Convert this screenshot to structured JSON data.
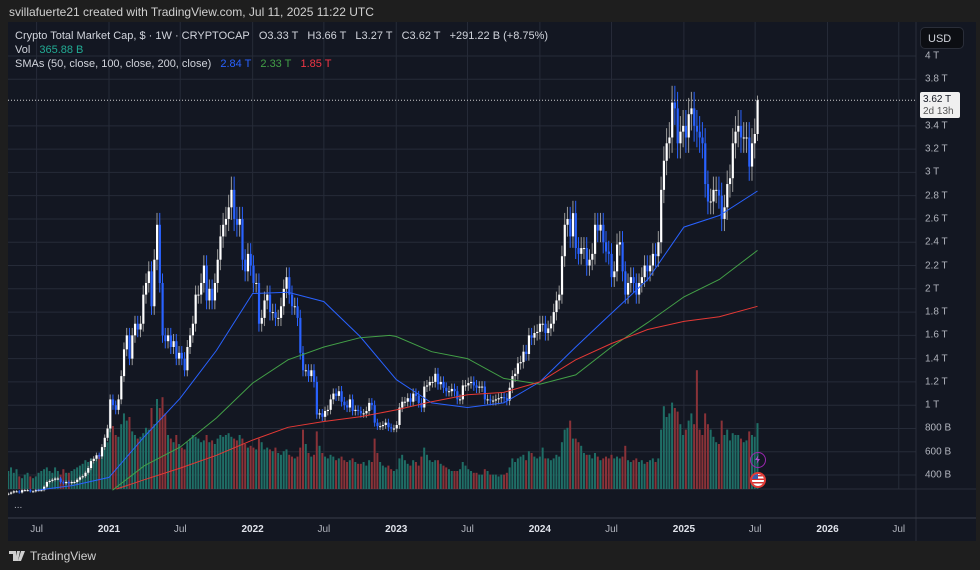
{
  "header": {
    "attribution": "svillafuerte21 created with TradingView.com, Jul 11, 2025 11:22 UTC"
  },
  "legend": {
    "symbol": "Crypto Total Market Cap, $ · 1W · CRYPTOCAP",
    "open": "O3.33 T",
    "high": "H3.66 T",
    "low": "L3.27 T",
    "close": "C3.62 T",
    "change": "+291.22 B (+8.75%)",
    "vol_label": "Vol",
    "vol_value": "365.88 B",
    "sma_label": "SMAs (50, close, 100, close, 200, close)",
    "sma50": "2.84 T",
    "sma100": "2.33 T",
    "sma200": "1.85 T"
  },
  "price_scale": {
    "currency": "USD",
    "ticks": [
      {
        "label": "4 T",
        "value": 4
      },
      {
        "label": "3.8 T",
        "value": 3.8
      },
      {
        "label": "3.4 T",
        "value": 3.4
      },
      {
        "label": "3.2 T",
        "value": 3.2
      },
      {
        "label": "3 T",
        "value": 3
      },
      {
        "label": "2.8 T",
        "value": 2.8
      },
      {
        "label": "2.6 T",
        "value": 2.6
      },
      {
        "label": "2.4 T",
        "value": 2.4
      },
      {
        "label": "2.2 T",
        "value": 2.2
      },
      {
        "label": "2 T",
        "value": 2
      },
      {
        "label": "1.8 T",
        "value": 1.8
      },
      {
        "label": "1.6 T",
        "value": 1.6
      },
      {
        "label": "1.4 T",
        "value": 1.4
      },
      {
        "label": "1.2 T",
        "value": 1.2
      },
      {
        "label": "1 T",
        "value": 1
      },
      {
        "label": "800 B",
        "value": 0.8
      },
      {
        "label": "600 B",
        "value": 0.6
      },
      {
        "label": "400 B",
        "value": 0.4
      }
    ],
    "last_price": "3.62 T",
    "countdown": "2d 13h"
  },
  "time_scale": {
    "ticks": [
      {
        "label": "Jul",
        "date": "2020-07-01",
        "year": false
      },
      {
        "label": "2021",
        "date": "2021-01-01",
        "year": true
      },
      {
        "label": "Jul",
        "date": "2021-07-01",
        "year": false
      },
      {
        "label": "2022",
        "date": "2022-01-01",
        "year": true
      },
      {
        "label": "Jul",
        "date": "2022-07-01",
        "year": false
      },
      {
        "label": "2023",
        "date": "2023-01-01",
        "year": true
      },
      {
        "label": "Jul",
        "date": "2023-07-01",
        "year": false
      },
      {
        "label": "2024",
        "date": "2024-01-01",
        "year": true
      },
      {
        "label": "Jul",
        "date": "2024-07-01",
        "year": false
      },
      {
        "label": "2025",
        "date": "2025-01-01",
        "year": true
      },
      {
        "label": "Jul",
        "date": "2025-07-01",
        "year": false
      },
      {
        "label": "2026",
        "date": "2026-01-01",
        "year": true
      },
      {
        "label": "Jul",
        "date": "2026-07-01",
        "year": false
      }
    ]
  },
  "pane_menu": "...",
  "footer": {
    "brand": "TradingView"
  },
  "colors": {
    "up": "#ffffff",
    "down": "#2962ff",
    "vol_up": "#1f6e66",
    "vol_down": "#8a3238",
    "sma50": "#2962ff",
    "sma100": "#43a047",
    "sma200": "#e53935",
    "background": "#131722",
    "grid": "#262b38"
  },
  "icons": [
    "lightning-event-icon",
    "us-flag-event-icon"
  ],
  "chart_data": {
    "type": "candlestick",
    "interval": "1W",
    "unit_price": "T USD",
    "unit_volume": "B USD",
    "first_week": "2020-04-20",
    "last_candle": {
      "open": 3.33,
      "high": 3.66,
      "low": 3.27,
      "close": 3.62
    },
    "closes": [
      0.24,
      0.25,
      0.26,
      0.26,
      0.25,
      0.27,
      0.27,
      0.27,
      0.26,
      0.26,
      0.27,
      0.27,
      0.27,
      0.3,
      0.34,
      0.35,
      0.36,
      0.37,
      0.37,
      0.34,
      0.33,
      0.34,
      0.33,
      0.34,
      0.34,
      0.36,
      0.38,
      0.39,
      0.42,
      0.46,
      0.52,
      0.54,
      0.57,
      0.56,
      0.64,
      0.72,
      0.8,
      1.05,
      1.0,
      0.96,
      1.05,
      1.25,
      1.48,
      1.6,
      1.4,
      1.6,
      1.7,
      1.65,
      1.7,
      1.95,
      2.05,
      2.15,
      1.85,
      2.25,
      2.55,
      2.05,
      1.6,
      1.55,
      1.6,
      1.5,
      1.55,
      1.4,
      1.45,
      1.4,
      1.3,
      1.5,
      1.6,
      1.7,
      1.95,
      1.95,
      2.05,
      2.2,
      1.9,
      2.0,
      1.9,
      2.05,
      2.25,
      2.45,
      2.55,
      2.6,
      2.7,
      2.85,
      2.6,
      2.55,
      2.6,
      2.25,
      2.15,
      2.3,
      2.2,
      2.05,
      2.05,
      1.7,
      1.75,
      1.9,
      1.95,
      1.8,
      1.8,
      1.75,
      1.75,
      1.85,
      2.0,
      2.1,
      1.95,
      1.85,
      1.85,
      1.75,
      1.45,
      1.3,
      1.3,
      1.25,
      1.3,
      1.2,
      0.92,
      0.93,
      0.9,
      0.95,
      0.96,
      1.05,
      1.1,
      1.08,
      1.12,
      1.03,
      1.0,
      0.98,
      1.05,
      0.95,
      0.96,
      0.95,
      0.93,
      0.93,
      0.95,
      1.02,
      1.0,
      0.85,
      0.82,
      0.82,
      0.83,
      0.85,
      0.81,
      0.8,
      0.8,
      0.83,
      0.98,
      1.03,
      1.03,
      1.06,
      1.03,
      1.1,
      1.08,
      1.02,
      0.98,
      1.16,
      1.17,
      1.2,
      1.2,
      1.27,
      1.18,
      1.2,
      1.15,
      1.12,
      1.12,
      1.14,
      1.12,
      1.05,
      1.05,
      1.17,
      1.17,
      1.19,
      1.2,
      1.17,
      1.15,
      1.16,
      1.16,
      1.05,
      1.05,
      1.04,
      1.04,
      1.05,
      1.06,
      1.07,
      1.06,
      1.04,
      1.15,
      1.25,
      1.27,
      1.36,
      1.37,
      1.46,
      1.44,
      1.6,
      1.58,
      1.62,
      1.63,
      1.7,
      1.7,
      1.62,
      1.66,
      1.7,
      1.8,
      1.9,
      1.95,
      2.28,
      2.55,
      2.6,
      2.45,
      2.65,
      2.35,
      2.3,
      2.35,
      2.35,
      2.2,
      2.25,
      2.3,
      2.55,
      2.5,
      2.55,
      2.4,
      2.32,
      2.3,
      2.1,
      2.15,
      2.38,
      2.4,
      2.15,
      1.95,
      2.05,
      2.1,
      2.05,
      1.95,
      2.05,
      2.1,
      2.2,
      2.15,
      2.2,
      2.3,
      2.28,
      2.4,
      2.85,
      3.1,
      3.25,
      3.3,
      3.6,
      3.55,
      3.25,
      3.35,
      3.4,
      3.3,
      3.5,
      3.55,
      3.4,
      3.35,
      3.3,
      3.25,
      2.9,
      2.75,
      2.75,
      2.85,
      2.85,
      2.8,
      2.6,
      2.7,
      2.9,
      2.95,
      3.25,
      3.35,
      3.4,
      3.3,
      3.3,
      3.3,
      3.05,
      3.25,
      3.33,
      3.62
    ],
    "volumes": [
      100,
      120,
      90,
      110,
      70,
      60,
      80,
      90,
      70,
      60,
      70,
      90,
      100,
      110,
      120,
      100,
      90,
      120,
      100,
      80,
      110,
      90,
      90,
      100,
      110,
      120,
      130,
      140,
      160,
      150,
      170,
      150,
      170,
      190,
      220,
      230,
      260,
      380,
      350,
      300,
      290,
      360,
      420,
      380,
      400,
      320,
      300,
      280,
      290,
      310,
      340,
      330,
      450,
      360,
      500,
      450,
      510,
      420,
      300,
      280,
      260,
      300,
      250,
      230,
      220,
      260,
      280,
      300,
      290,
      280,
      260,
      270,
      300,
      260,
      270,
      250,
      280,
      300,
      290,
      300,
      310,
      290,
      280,
      270,
      300,
      280,
      250,
      230,
      240,
      230,
      220,
      280,
      260,
      220,
      230,
      220,
      210,
      230,
      200,
      190,
      210,
      220,
      190,
      180,
      170,
      180,
      230,
      330,
      250,
      200,
      180,
      190,
      320,
      240,
      200,
      180,
      170,
      190,
      180,
      160,
      170,
      180,
      160,
      150,
      160,
      170,
      150,
      140,
      140,
      150,
      130,
      160,
      150,
      280,
      200,
      150,
      130,
      120,
      130,
      110,
      100,
      110,
      170,
      190,
      160,
      140,
      130,
      160,
      150,
      130,
      180,
      230,
      190,
      160,
      150,
      160,
      160,
      140,
      130,
      120,
      110,
      100,
      100,
      100,
      110,
      150,
      130,
      110,
      100,
      90,
      90,
      80,
      80,
      110,
      100,
      80,
      80,
      80,
      70,
      80,
      80,
      90,
      120,
      170,
      150,
      170,
      180,
      190,
      160,
      210,
      200,
      180,
      170,
      180,
      230,
      170,
      170,
      160,
      170,
      190,
      180,
      260,
      330,
      340,
      380,
      280,
      280,
      260,
      240,
      200,
      190,
      190,
      170,
      200,
      180,
      160,
      170,
      180,
      170,
      190,
      170,
      180,
      170,
      180,
      240,
      160,
      150,
      160,
      170,
      150,
      160,
      140,
      150,
      160,
      170,
      150,
      170,
      330,
      460,
      400,
      420,
      480,
      450,
      430,
      360,
      300,
      330,
      380,
      420,
      360,
      660,
      330,
      300,
      420,
      360,
      330,
      290,
      260,
      250,
      380,
      300,
      330,
      270,
      310,
      300,
      300,
      280,
      260,
      270,
      320,
      300,
      290,
      365.88
    ],
    "sma": [
      {
        "name": "SMA 50",
        "color": "#2962ff",
        "points": [
          [
            "2020-07-01",
            0.27
          ],
          [
            "2020-10-01",
            0.31
          ],
          [
            "2021-01-01",
            0.38
          ],
          [
            "2021-04-01",
            0.73
          ],
          [
            "2021-07-01",
            1.06
          ],
          [
            "2021-10-01",
            1.47
          ],
          [
            "2022-01-01",
            1.96
          ],
          [
            "2022-04-01",
            1.97
          ],
          [
            "2022-07-01",
            1.89
          ],
          [
            "2022-10-01",
            1.59
          ],
          [
            "2023-01-01",
            1.22
          ],
          [
            "2023-04-01",
            1.02
          ],
          [
            "2023-07-01",
            0.98
          ],
          [
            "2023-10-01",
            1.02
          ],
          [
            "2024-01-01",
            1.2
          ],
          [
            "2024-04-01",
            1.5
          ],
          [
            "2024-07-01",
            1.79
          ],
          [
            "2024-10-01",
            2.08
          ],
          [
            "2025-01-01",
            2.53
          ],
          [
            "2025-04-01",
            2.63
          ],
          [
            "2025-07-07",
            2.84
          ]
        ]
      },
      {
        "name": "SMA 100",
        "color": "#43a047",
        "points": [
          [
            "2021-01-10",
            0.27
          ],
          [
            "2021-04-01",
            0.48
          ],
          [
            "2021-07-01",
            0.64
          ],
          [
            "2021-10-01",
            0.89
          ],
          [
            "2022-01-01",
            1.19
          ],
          [
            "2022-04-01",
            1.39
          ],
          [
            "2022-07-01",
            1.5
          ],
          [
            "2022-10-01",
            1.58
          ],
          [
            "2022-12-15",
            1.6
          ],
          [
            "2023-01-01",
            1.59
          ],
          [
            "2023-04-01",
            1.46
          ],
          [
            "2023-07-01",
            1.4
          ],
          [
            "2023-10-01",
            1.23
          ],
          [
            "2024-01-01",
            1.18
          ],
          [
            "2024-04-01",
            1.26
          ],
          [
            "2024-07-01",
            1.5
          ],
          [
            "2024-10-01",
            1.71
          ],
          [
            "2025-01-01",
            1.93
          ],
          [
            "2025-04-01",
            2.08
          ],
          [
            "2025-07-07",
            2.33
          ]
        ]
      },
      {
        "name": "SMA 200",
        "color": "#e53935",
        "points": [
          [
            "2021-01-20",
            0.28
          ],
          [
            "2021-04-01",
            0.36
          ],
          [
            "2021-07-01",
            0.46
          ],
          [
            "2021-10-01",
            0.57
          ],
          [
            "2022-01-01",
            0.7
          ],
          [
            "2022-04-01",
            0.81
          ],
          [
            "2022-07-01",
            0.86
          ],
          [
            "2022-10-01",
            0.9
          ],
          [
            "2023-01-01",
            0.96
          ],
          [
            "2023-04-01",
            1.03
          ],
          [
            "2023-07-01",
            1.09
          ],
          [
            "2023-10-01",
            1.11
          ],
          [
            "2024-01-01",
            1.2
          ],
          [
            "2024-04-01",
            1.39
          ],
          [
            "2024-07-01",
            1.53
          ],
          [
            "2024-10-01",
            1.65
          ],
          [
            "2025-01-01",
            1.72
          ],
          [
            "2025-04-01",
            1.76
          ],
          [
            "2025-07-07",
            1.85
          ]
        ]
      }
    ],
    "ylim": [
      0.25,
      4.05
    ],
    "grid": true,
    "scale": "linear"
  }
}
